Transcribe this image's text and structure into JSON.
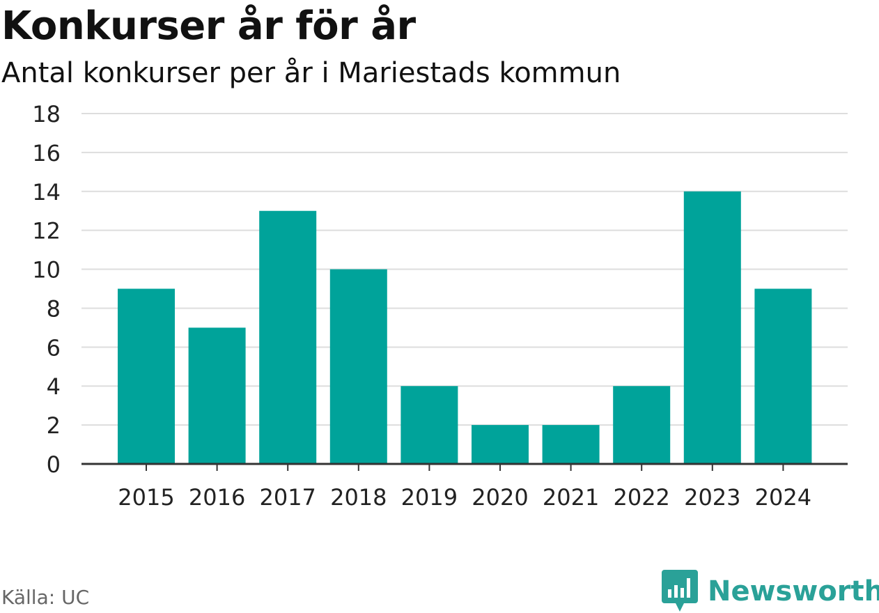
{
  "header": {
    "title": "Konkurser år för år",
    "subtitle": "Antal konkurser per år i Mariestads kommun"
  },
  "footer": {
    "source": "Källa: UC",
    "brand": "Newsworthy",
    "brand_icon": "bar-chart-speech-bubble-icon"
  },
  "colors": {
    "bar": "#00a39a",
    "grid": "#dddddd",
    "axis": "#333333",
    "brand": "#2aa198"
  },
  "chart_data": {
    "type": "bar",
    "title": "Konkurser år för år",
    "subtitle": "Antal konkurser per år i Mariestads kommun",
    "xlabel": "",
    "ylabel": "",
    "categories": [
      "2015",
      "2016",
      "2017",
      "2018",
      "2019",
      "2020",
      "2021",
      "2022",
      "2023",
      "2024"
    ],
    "values": [
      9,
      7,
      13,
      10,
      4,
      2,
      2,
      4,
      14,
      9
    ],
    "ylim": [
      0,
      18
    ],
    "yticks": [
      0,
      2,
      4,
      6,
      8,
      10,
      12,
      14,
      16,
      18
    ],
    "grid": true,
    "legend": "none"
  }
}
